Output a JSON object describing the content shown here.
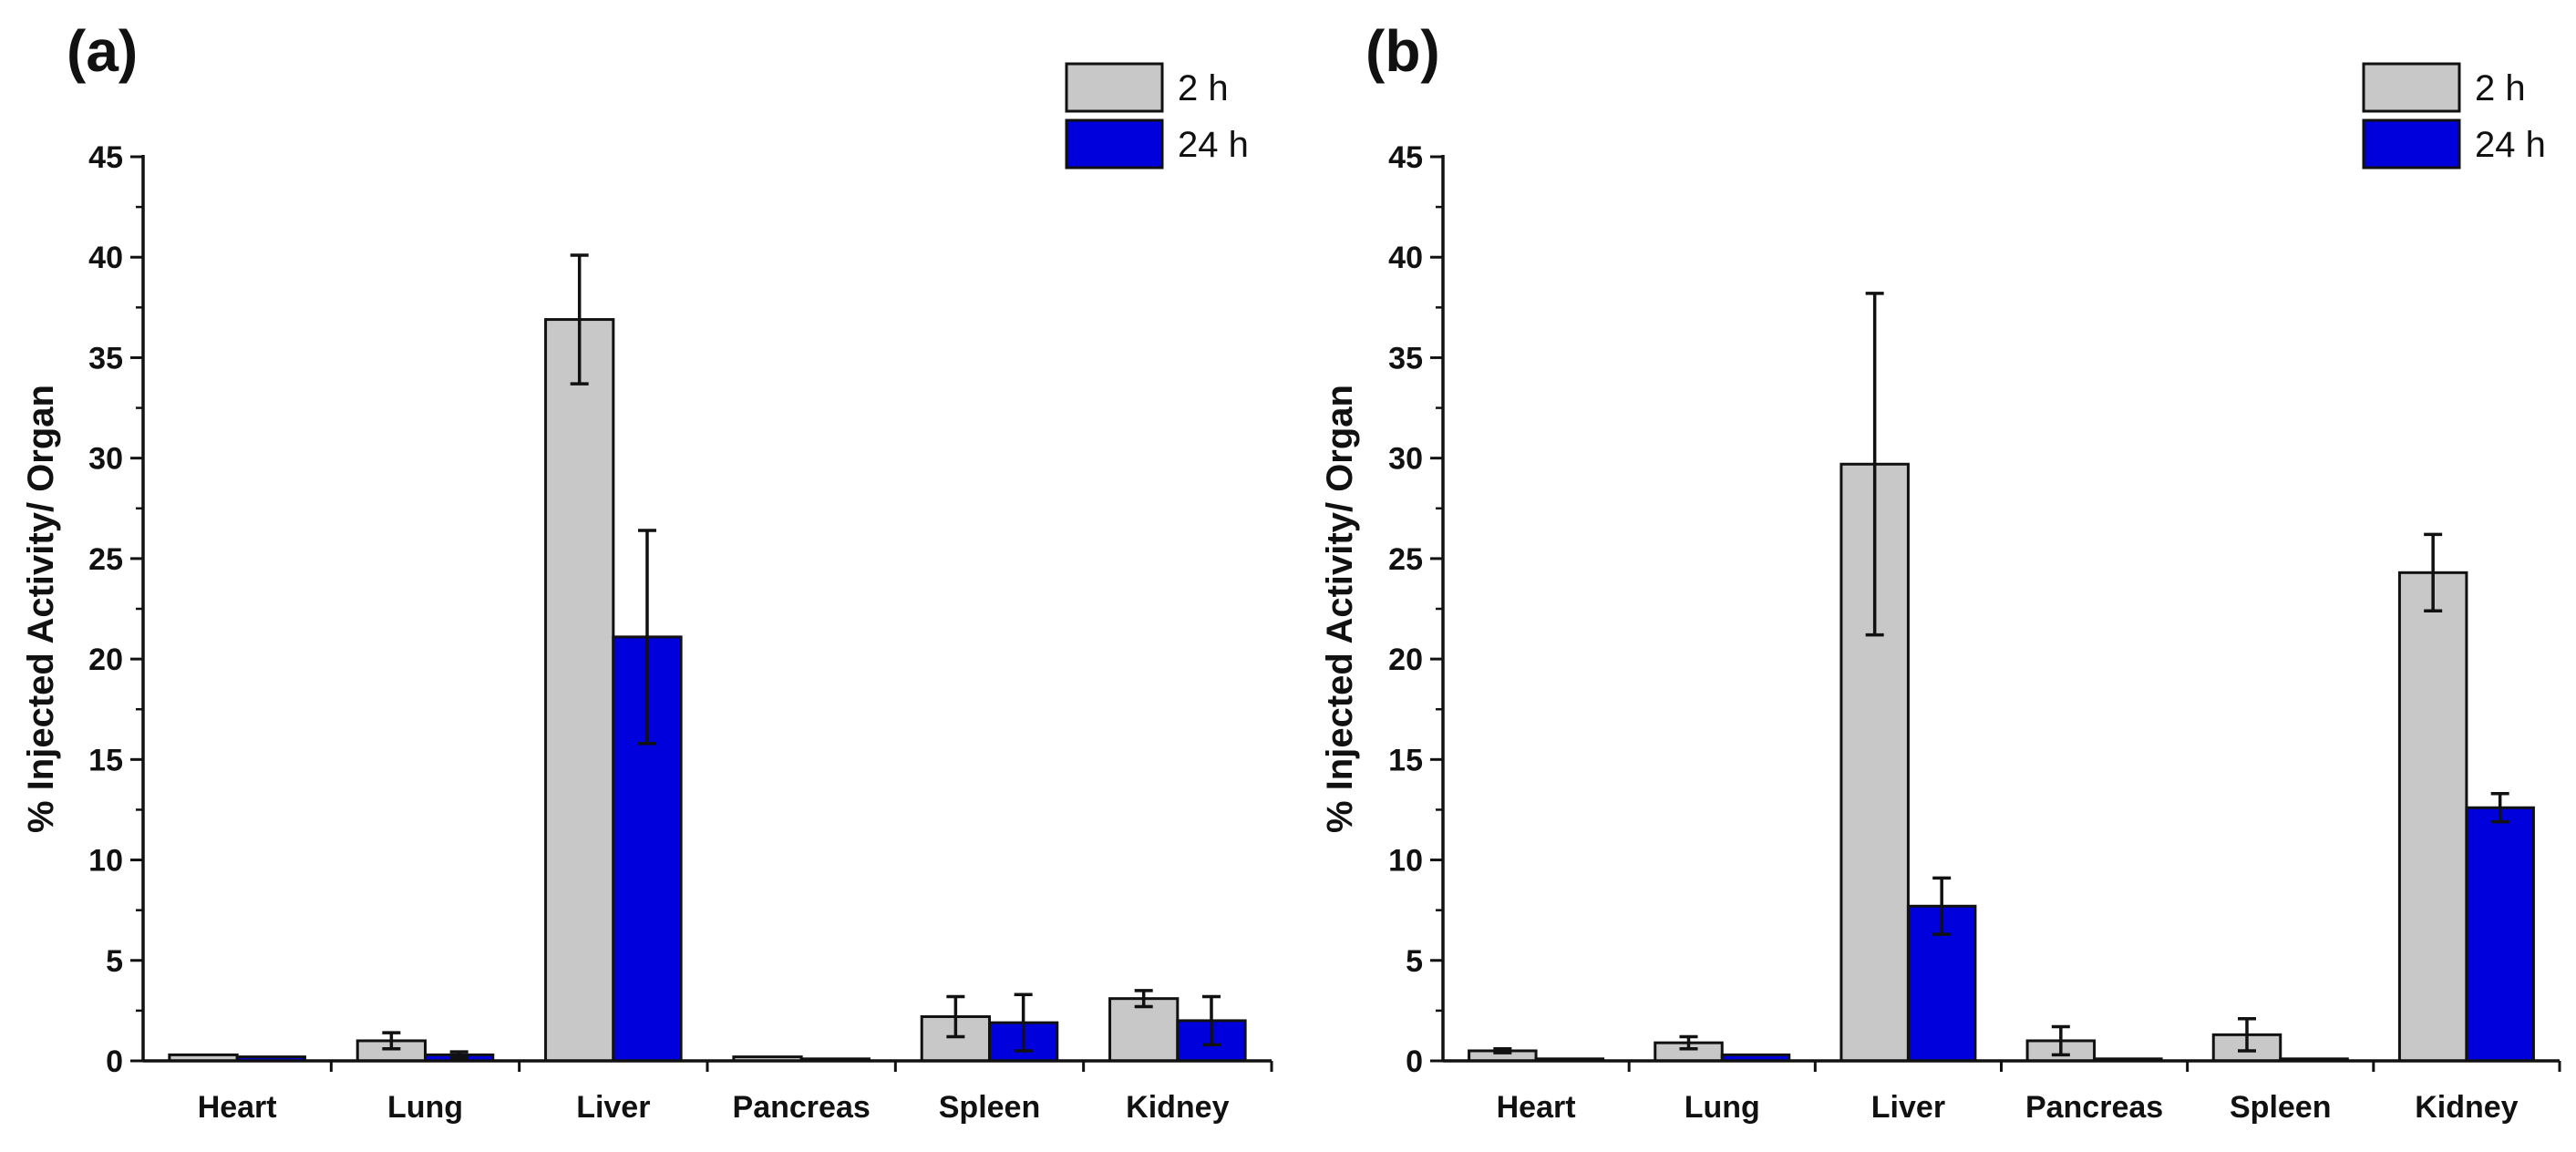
{
  "colors": {
    "series_2h": "#c8c8c8",
    "series_24h": "#0000dd",
    "outline": "#111111"
  },
  "chart_data": [
    {
      "type": "bar",
      "panel_label": "(a)",
      "title": "",
      "xlabel": "",
      "ylabel": "% Injected Activity/ Organ",
      "ylim": [
        0,
        45
      ],
      "yticks": [
        0,
        5,
        10,
        15,
        20,
        25,
        30,
        35,
        40,
        45
      ],
      "legend_position": "top-right",
      "categories": [
        "Heart",
        "Lung",
        "Liver",
        "Pancreas",
        "Spleen",
        "Kidney"
      ],
      "series": [
        {
          "name": "2 h",
          "color": "#c8c8c8",
          "values": [
            0.3,
            1.0,
            36.9,
            0.2,
            2.2,
            3.1
          ],
          "errors": [
            0,
            0.4,
            3.2,
            0,
            1.0,
            0.4
          ]
        },
        {
          "name": "24 h",
          "color": "#0000dd",
          "values": [
            0.2,
            0.3,
            21.1,
            0.1,
            1.9,
            2.0
          ],
          "errors": [
            0,
            0.15,
            5.3,
            0,
            1.4,
            1.2
          ]
        }
      ]
    },
    {
      "type": "bar",
      "panel_label": "(b)",
      "title": "",
      "xlabel": "",
      "ylabel": "% Injected Activity/ Organ",
      "ylim": [
        0,
        45
      ],
      "yticks": [
        0,
        5,
        10,
        15,
        20,
        25,
        30,
        35,
        40,
        45
      ],
      "legend_position": "top-right",
      "categories": [
        "Heart",
        "Lung",
        "Liver",
        "Pancreas",
        "Spleen",
        "Kidney"
      ],
      "series": [
        {
          "name": "2 h",
          "color": "#c8c8c8",
          "values": [
            0.5,
            0.9,
            29.7,
            1.0,
            1.3,
            24.3
          ],
          "errors": [
            0.1,
            0.3,
            8.5,
            0.7,
            0.8,
            1.9
          ]
        },
        {
          "name": "24 h",
          "color": "#0000dd",
          "values": [
            0.1,
            0.3,
            7.7,
            0.1,
            0.1,
            12.6
          ],
          "errors": [
            0,
            0,
            1.4,
            0,
            0,
            0.7
          ]
        }
      ]
    }
  ]
}
